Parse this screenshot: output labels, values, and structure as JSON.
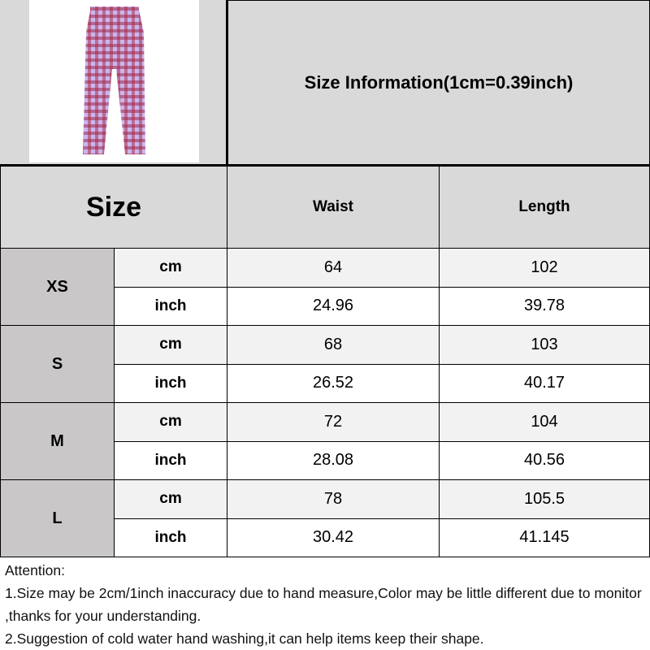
{
  "title": "Size Information(1cm=0.39inch)",
  "header": {
    "size": "Size",
    "waist": "Waist",
    "length": "Length"
  },
  "rows": [
    {
      "size": "XS",
      "cm": {
        "unit": "cm",
        "waist": "64",
        "length": "102"
      },
      "inch": {
        "unit": "inch",
        "waist": "24.96",
        "length": "39.78"
      }
    },
    {
      "size": "S",
      "cm": {
        "unit": "cm",
        "waist": "68",
        "length": "103"
      },
      "inch": {
        "unit": "inch",
        "waist": "26.52",
        "length": "40.17"
      }
    },
    {
      "size": "M",
      "cm": {
        "unit": "cm",
        "waist": "72",
        "length": "104"
      },
      "inch": {
        "unit": "inch",
        "waist": "28.08",
        "length": "40.56"
      }
    },
    {
      "size": "L",
      "cm": {
        "unit": "cm",
        "waist": "78",
        "length": "105.5"
      },
      "inch": {
        "unit": "inch",
        "waist": "30.42",
        "length": "41.145"
      }
    }
  ],
  "attention": [
    "Attention:",
    "1.Size may be 2cm/1inch inaccuracy due to hand measure,Color may be little different due to monitor ,thanks for your understanding.",
    "2.Suggestion of cold water hand washing,it can help items keep their shape."
  ],
  "colors": {
    "header_bg": "#d9d9d9",
    "size_bg": "#c9c7c7",
    "cm_row_bg": "#f2f2f2",
    "plaid_red": "#b0304a",
    "plaid_lilac": "#c9b6ee"
  }
}
